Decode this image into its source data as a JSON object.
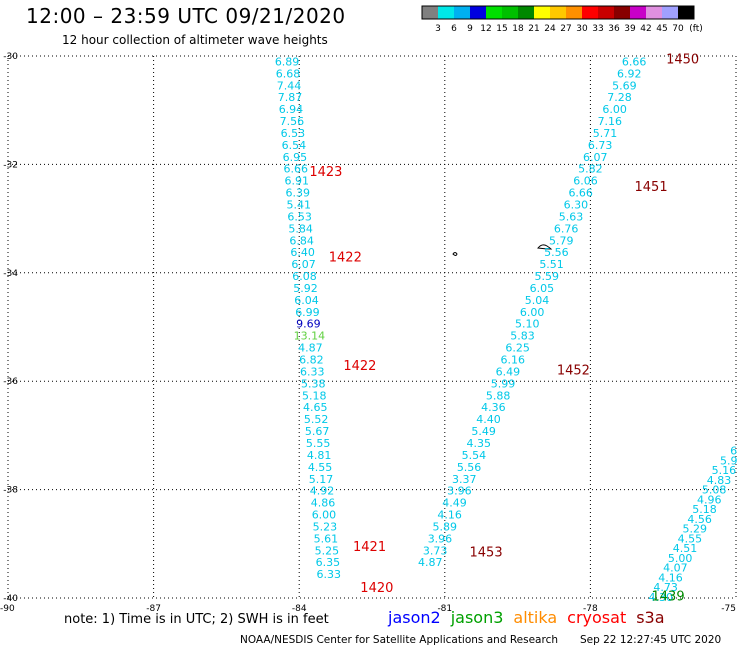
{
  "header": {
    "title": "12:00 – 23:59 UTC 09/21/2020",
    "subtitle": "12 hour collection of altimeter wave heights"
  },
  "legend": {
    "colors": [
      "#808080",
      "#00e8e8",
      "#00b0f0",
      "#0000e0",
      "#00e000",
      "#00c000",
      "#008800",
      "#ffff00",
      "#ffc800",
      "#ff9000",
      "#ff0000",
      "#c80000",
      "#880000",
      "#c800c8",
      "#e090e0",
      "#a0a0ff",
      "#000000"
    ],
    "labels": [
      "3",
      "6",
      "9",
      "12",
      "15",
      "18",
      "21",
      "24",
      "27",
      "30",
      "33",
      "36",
      "39",
      "42",
      "45",
      "70"
    ],
    "unit": "(ft)"
  },
  "axes": {
    "lat_ticks": [
      "-30",
      "-32",
      "-34",
      "-36",
      "-38",
      "-40"
    ],
    "lon_ticks": [
      "-90",
      "-87",
      "-84",
      "-81",
      "-78",
      "-75"
    ]
  },
  "chart_data": {
    "type": "scatter",
    "x_range": [
      -90,
      -75
    ],
    "y_range": [
      -40,
      -30
    ],
    "tracks": [
      {
        "name": "track-1",
        "color": "#00c8e8",
        "points": [
          {
            "lon": -84.25,
            "lat": -30.1,
            "v": "6.89"
          },
          {
            "lon": -84.23,
            "lat": -30.32,
            "v": "6.68"
          },
          {
            "lon": -84.21,
            "lat": -30.54,
            "v": "7.44"
          },
          {
            "lon": -84.19,
            "lat": -30.76,
            "v": "7.87"
          },
          {
            "lon": -84.17,
            "lat": -30.98,
            "v": "6.94"
          },
          {
            "lon": -84.15,
            "lat": -31.2,
            "v": "7.56"
          },
          {
            "lon": -84.13,
            "lat": -31.42,
            "v": "6.53"
          },
          {
            "lon": -84.11,
            "lat": -31.64,
            "v": "6.54"
          },
          {
            "lon": -84.09,
            "lat": -31.86,
            "v": "6.95"
          },
          {
            "lon": -84.07,
            "lat": -32.08,
            "v": "6.66"
          },
          {
            "lon": -84.05,
            "lat": -32.3,
            "v": "6.91"
          },
          {
            "lon": -84.03,
            "lat": -32.52,
            "v": "6.39"
          },
          {
            "lon": -84.01,
            "lat": -32.74,
            "v": "5.41"
          },
          {
            "lon": -83.99,
            "lat": -32.96,
            "v": "6.53"
          },
          {
            "lon": -83.97,
            "lat": -33.18,
            "v": "5.84"
          },
          {
            "lon": -83.95,
            "lat": -33.4,
            "v": "6.84"
          },
          {
            "lon": -83.93,
            "lat": -33.62,
            "v": "6.40"
          },
          {
            "lon": -83.91,
            "lat": -33.84,
            "v": "6.07"
          },
          {
            "lon": -83.89,
            "lat": -34.06,
            "v": "6.08"
          },
          {
            "lon": -83.87,
            "lat": -34.28,
            "v": "5.92"
          },
          {
            "lon": -83.85,
            "lat": -34.5,
            "v": "6.04"
          },
          {
            "lon": -83.83,
            "lat": -34.72,
            "v": "6.99"
          },
          {
            "lon": -83.81,
            "lat": -34.94,
            "v": "9.69",
            "color": "#0000c0"
          },
          {
            "lon": -83.79,
            "lat": -35.16,
            "v": "13.14",
            "color": "#60d040"
          },
          {
            "lon": -83.77,
            "lat": -35.38,
            "v": "4.87"
          },
          {
            "lon": -83.75,
            "lat": -35.6,
            "v": "6.82"
          },
          {
            "lon": -83.73,
            "lat": -35.82,
            "v": "6.33"
          },
          {
            "lon": -83.71,
            "lat": -36.04,
            "v": "5.38"
          },
          {
            "lon": -83.69,
            "lat": -36.26,
            "v": "5.18"
          },
          {
            "lon": -83.67,
            "lat": -36.48,
            "v": "4.65"
          },
          {
            "lon": -83.65,
            "lat": -36.7,
            "v": "5.52"
          },
          {
            "lon": -83.63,
            "lat": -36.92,
            "v": "5.67"
          },
          {
            "lon": -83.61,
            "lat": -37.14,
            "v": "5.55"
          },
          {
            "lon": -83.59,
            "lat": -37.36,
            "v": "4.81"
          },
          {
            "lon": -83.57,
            "lat": -37.58,
            "v": "4.55"
          },
          {
            "lon": -83.55,
            "lat": -37.8,
            "v": "5.17"
          },
          {
            "lon": -83.53,
            "lat": -38.02,
            "v": "4.92"
          },
          {
            "lon": -83.51,
            "lat": -38.24,
            "v": "4.86"
          },
          {
            "lon": -83.49,
            "lat": -38.46,
            "v": "6.00"
          },
          {
            "lon": -83.47,
            "lat": -38.68,
            "v": "5.23"
          },
          {
            "lon": -83.45,
            "lat": -38.9,
            "v": "5.61"
          },
          {
            "lon": -83.43,
            "lat": -39.12,
            "v": "5.25"
          },
          {
            "lon": -83.41,
            "lat": -39.34,
            "v": "6.35"
          },
          {
            "lon": -83.39,
            "lat": -39.56,
            "v": "6.33"
          }
        ]
      },
      {
        "name": "track-2",
        "color": "#00c8e8",
        "points": [
          {
            "lon": -77.1,
            "lat": -30.1,
            "v": "6.66"
          },
          {
            "lon": -77.2,
            "lat": -30.32,
            "v": "6.92"
          },
          {
            "lon": -77.3,
            "lat": -30.54,
            "v": "5.69"
          },
          {
            "lon": -77.4,
            "lat": -30.76,
            "v": "7.28"
          },
          {
            "lon": -77.5,
            "lat": -30.98,
            "v": "6.00"
          },
          {
            "lon": -77.6,
            "lat": -31.2,
            "v": "7.16"
          },
          {
            "lon": -77.7,
            "lat": -31.42,
            "v": "5.71"
          },
          {
            "lon": -77.8,
            "lat": -31.64,
            "v": "6.73"
          },
          {
            "lon": -77.9,
            "lat": -31.86,
            "v": "6.07"
          },
          {
            "lon": -78.0,
            "lat": -32.08,
            "v": "5.82"
          },
          {
            "lon": -78.1,
            "lat": -32.3,
            "v": "6.06"
          },
          {
            "lon": -78.2,
            "lat": -32.52,
            "v": "6.66"
          },
          {
            "lon": -78.3,
            "lat": -32.74,
            "v": "6.30"
          },
          {
            "lon": -78.4,
            "lat": -32.96,
            "v": "5.63"
          },
          {
            "lon": -78.5,
            "lat": -33.18,
            "v": "6.76"
          },
          {
            "lon": -78.6,
            "lat": -33.4,
            "v": "5.79"
          },
          {
            "lon": -78.7,
            "lat": -33.62,
            "v": "5.56"
          },
          {
            "lon": -78.8,
            "lat": -33.84,
            "v": "5.51"
          },
          {
            "lon": -78.9,
            "lat": -34.06,
            "v": "5.59"
          },
          {
            "lon": -79.0,
            "lat": -34.28,
            "v": "6.05"
          },
          {
            "lon": -79.1,
            "lat": -34.5,
            "v": "5.04"
          },
          {
            "lon": -79.2,
            "lat": -34.72,
            "v": "6.00"
          },
          {
            "lon": -79.3,
            "lat": -34.94,
            "v": "5.10"
          },
          {
            "lon": -79.4,
            "lat": -35.16,
            "v": "5.83"
          },
          {
            "lon": -79.5,
            "lat": -35.38,
            "v": "6.25"
          },
          {
            "lon": -79.6,
            "lat": -35.6,
            "v": "6.16"
          },
          {
            "lon": -79.7,
            "lat": -35.82,
            "v": "6.49"
          },
          {
            "lon": -79.8,
            "lat": -36.04,
            "v": "5.99"
          },
          {
            "lon": -79.9,
            "lat": -36.26,
            "v": "5.88"
          },
          {
            "lon": -80.0,
            "lat": -36.48,
            "v": "4.36"
          },
          {
            "lon": -80.1,
            "lat": -36.7,
            "v": "4.40"
          },
          {
            "lon": -80.2,
            "lat": -36.92,
            "v": "5.49"
          },
          {
            "lon": -80.3,
            "lat": -37.14,
            "v": "4.35"
          },
          {
            "lon": -80.4,
            "lat": -37.36,
            "v": "5.54"
          },
          {
            "lon": -80.5,
            "lat": -37.58,
            "v": "5.56"
          },
          {
            "lon": -80.6,
            "lat": -37.8,
            "v": "3.37"
          },
          {
            "lon": -80.7,
            "lat": -38.02,
            "v": "3.96"
          },
          {
            "lon": -80.8,
            "lat": -38.24,
            "v": "4.49"
          },
          {
            "lon": -80.9,
            "lat": -38.46,
            "v": "4.16"
          },
          {
            "lon": -81.0,
            "lat": -38.68,
            "v": "5.89"
          },
          {
            "lon": -81.1,
            "lat": -38.9,
            "v": "3.96"
          },
          {
            "lon": -81.2,
            "lat": -39.12,
            "v": "3.73"
          },
          {
            "lon": -81.3,
            "lat": -39.34,
            "v": "4.87"
          }
        ]
      },
      {
        "name": "track-3",
        "color": "#00c8e8",
        "points": [
          {
            "lon": -75.05,
            "lat": -37.28,
            "v": "6"
          },
          {
            "lon": -75.15,
            "lat": -37.46,
            "v": "5.9"
          },
          {
            "lon": -75.25,
            "lat": -37.64,
            "v": "5.16"
          },
          {
            "lon": -75.35,
            "lat": -37.82,
            "v": "4.83"
          },
          {
            "lon": -75.45,
            "lat": -38.0,
            "v": "5.08"
          },
          {
            "lon": -75.55,
            "lat": -38.18,
            "v": "4.96"
          },
          {
            "lon": -75.65,
            "lat": -38.36,
            "v": "5.18"
          },
          {
            "lon": -75.75,
            "lat": -38.54,
            "v": "4.56"
          },
          {
            "lon": -75.85,
            "lat": -38.72,
            "v": "5.29"
          },
          {
            "lon": -75.95,
            "lat": -38.9,
            "v": "4.55"
          },
          {
            "lon": -76.05,
            "lat": -39.08,
            "v": "4.51"
          },
          {
            "lon": -76.15,
            "lat": -39.26,
            "v": "5.00"
          },
          {
            "lon": -76.25,
            "lat": -39.44,
            "v": "4.07"
          },
          {
            "lon": -76.35,
            "lat": -39.62,
            "v": "4.16"
          },
          {
            "lon": -76.45,
            "lat": -39.8,
            "v": "4.73"
          },
          {
            "lon": -76.55,
            "lat": -39.98,
            "v": "4.30"
          }
        ]
      }
    ],
    "time_labels": [
      {
        "text": "1423",
        "lon": -83.45,
        "lat": -32.12,
        "color": "#dd0000"
      },
      {
        "text": "1422",
        "lon": -83.05,
        "lat": -33.7,
        "color": "#dd0000"
      },
      {
        "text": "1422",
        "lon": -82.75,
        "lat": -35.7,
        "color": "#dd0000"
      },
      {
        "text": "1421",
        "lon": -82.55,
        "lat": -39.04,
        "color": "#dd0000"
      },
      {
        "text": "1420",
        "lon": -82.4,
        "lat": -39.8,
        "color": "#dd0000"
      },
      {
        "text": "1450",
        "lon": -76.1,
        "lat": -30.05,
        "color": "#880000"
      },
      {
        "text": "1451",
        "lon": -76.75,
        "lat": -32.4,
        "color": "#880000"
      },
      {
        "text": "1452",
        "lon": -78.35,
        "lat": -35.78,
        "color": "#880000"
      },
      {
        "text": "1453",
        "lon": -80.15,
        "lat": -39.14,
        "color": "#880000"
      },
      {
        "text": "1439",
        "lon": -76.4,
        "lat": -39.95,
        "color": "#008800"
      }
    ]
  },
  "footer": {
    "note": "note:  1) Time is in UTC; 2) SWH is in feet",
    "satellites": [
      {
        "name": "jason2",
        "color": "#0000ff"
      },
      {
        "name": "jason3",
        "color": "#00a000"
      },
      {
        "name": "altika",
        "color": "#ff8c00"
      },
      {
        "name": "cryosat",
        "color": "#ff0000"
      },
      {
        "name": "s3a",
        "color": "#880000"
      }
    ],
    "credit": "NOAA/NESDIS Center for Satellite Applications and Research",
    "timestamp": "Sep 22 12:27:45 UTC 2020"
  }
}
